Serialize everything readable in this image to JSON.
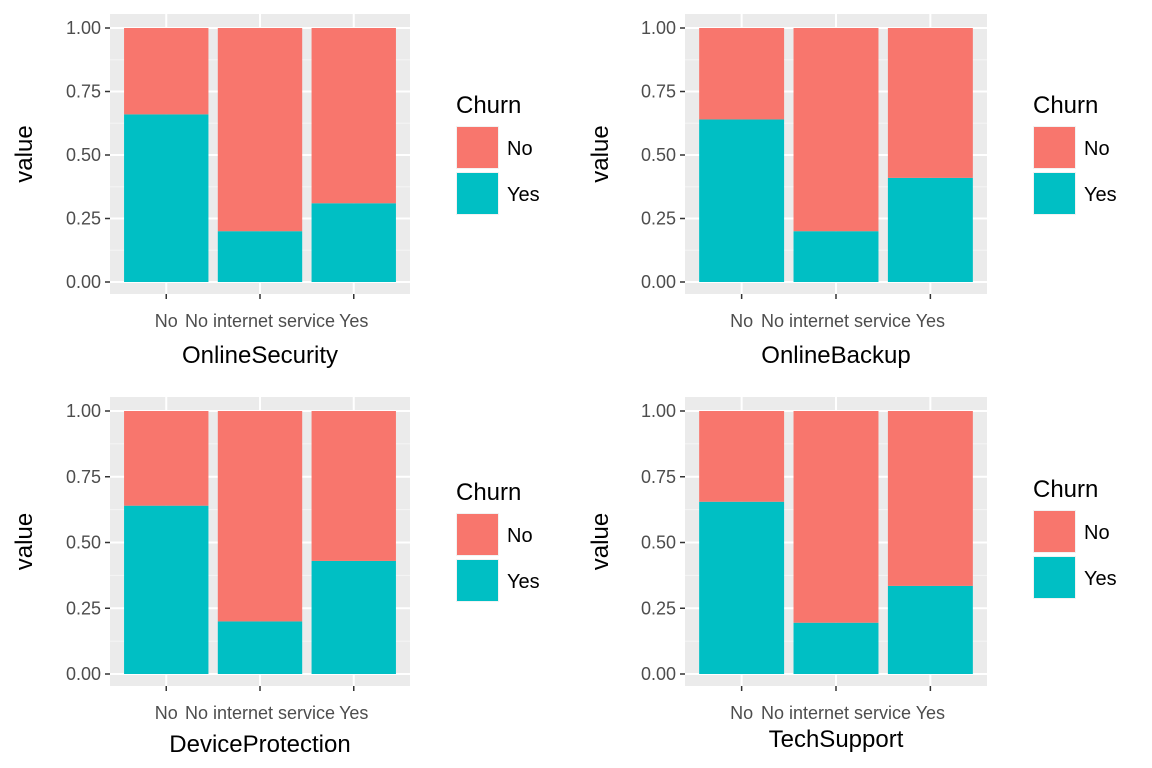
{
  "legend_title": "Churn",
  "colors": {
    "No": "#F8766D",
    "Yes": "#00BFC4",
    "panel": "#EBEBEB",
    "grid_major": "#FFFFFF",
    "text_axis": "#4D4D4D",
    "text_title": "#000000"
  },
  "chart_data": [
    {
      "type": "bar",
      "stacked": true,
      "xlabel": "OnlineSecurity",
      "ylabel": "value",
      "ylim": [
        0,
        1
      ],
      "yticks": [
        "0.00",
        "0.25",
        "0.50",
        "0.75",
        "1.00"
      ],
      "categories": [
        "No",
        "No internet service",
        "Yes"
      ],
      "series": [
        {
          "name": "No",
          "values": [
            0.34,
            0.8,
            0.69
          ]
        },
        {
          "name": "Yes",
          "values": [
            0.66,
            0.2,
            0.31
          ]
        }
      ],
      "legend": {
        "title": "Churn",
        "entries": [
          "No",
          "Yes"
        ],
        "position": "right"
      }
    },
    {
      "type": "bar",
      "stacked": true,
      "xlabel": "OnlineBackup",
      "ylabel": "value",
      "ylim": [
        0,
        1
      ],
      "yticks": [
        "0.00",
        "0.25",
        "0.50",
        "0.75",
        "1.00"
      ],
      "categories": [
        "No",
        "No internet service",
        "Yes"
      ],
      "series": [
        {
          "name": "No",
          "values": [
            0.36,
            0.8,
            0.59
          ]
        },
        {
          "name": "Yes",
          "values": [
            0.64,
            0.2,
            0.41
          ]
        }
      ],
      "legend": {
        "title": "Churn",
        "entries": [
          "No",
          "Yes"
        ],
        "position": "right"
      }
    },
    {
      "type": "bar",
      "stacked": true,
      "xlabel": "DeviceProtection",
      "ylabel": "value",
      "ylim": [
        0,
        1
      ],
      "yticks": [
        "0.00",
        "0.25",
        "0.50",
        "0.75",
        "1.00"
      ],
      "categories": [
        "No",
        "No internet service",
        "Yes"
      ],
      "series": [
        {
          "name": "No",
          "values": [
            0.36,
            0.8,
            0.57
          ]
        },
        {
          "name": "Yes",
          "values": [
            0.64,
            0.2,
            0.43
          ]
        }
      ],
      "legend": {
        "title": "Churn",
        "entries": [
          "No",
          "Yes"
        ],
        "position": "right"
      }
    },
    {
      "type": "bar",
      "stacked": true,
      "xlabel": "TechSupport",
      "ylabel": "value",
      "ylim": [
        0,
        1
      ],
      "yticks": [
        "0.00",
        "0.25",
        "0.50",
        "0.75",
        "1.00"
      ],
      "categories": [
        "No",
        "No internet service",
        "Yes"
      ],
      "series": [
        {
          "name": "No",
          "values": [
            0.345,
            0.805,
            0.665
          ]
        },
        {
          "name": "Yes",
          "values": [
            0.655,
            0.195,
            0.335
          ]
        }
      ],
      "legend": {
        "title": "Churn",
        "entries": [
          "No",
          "Yes"
        ],
        "position": "right"
      }
    }
  ]
}
